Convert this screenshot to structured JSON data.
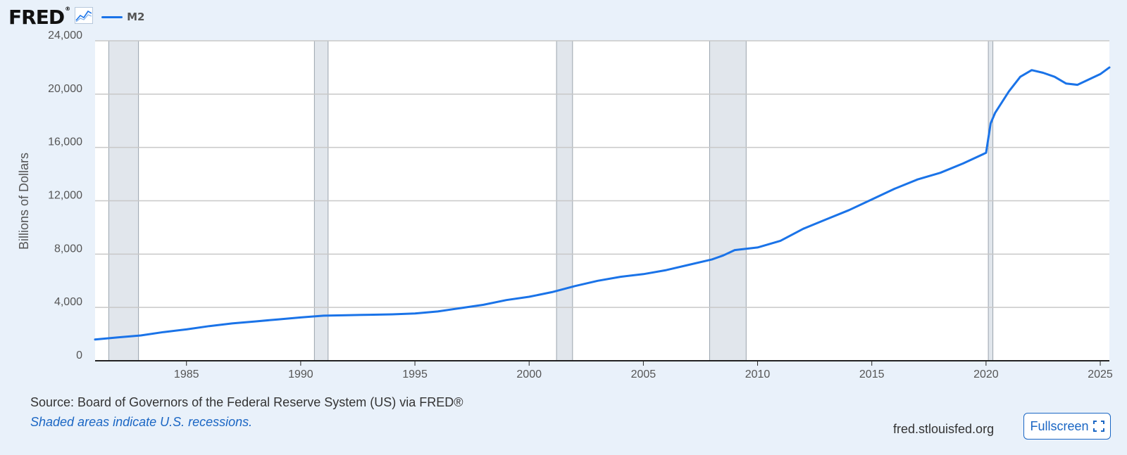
{
  "header": {
    "logo_text": "FRED",
    "logo_mark": "®",
    "legend_label": "M2"
  },
  "icons": {
    "logo_graph": "line-graph-icon",
    "fullscreen": "expand-icon"
  },
  "colors": {
    "series": "#1a73e8",
    "recession": "#e1e6ec",
    "background": "#e9f1fa",
    "link": "#1a66c4"
  },
  "footer": {
    "source": "Source: Board of Governors of the Federal Reserve System (US) via FRED®",
    "recession_note": "Shaded areas indicate U.S. recessions.",
    "site_url": "fred.stlouisfed.org",
    "fullscreen_label": "Fullscreen"
  },
  "chart_data": {
    "type": "line",
    "title": "",
    "xlabel": "",
    "ylabel": "Billions of Dollars",
    "xlim": [
      1981.0,
      2025.4
    ],
    "ylim": [
      0,
      24000
    ],
    "yticks": [
      0,
      4000,
      8000,
      12000,
      16000,
      20000,
      24000
    ],
    "ytick_labels": [
      "0",
      "4,000",
      "8,000",
      "12,000",
      "16,000",
      "20,000",
      "24,000"
    ],
    "xticks": [
      1985,
      1990,
      1995,
      2000,
      2005,
      2010,
      2015,
      2020,
      2025
    ],
    "xtick_labels": [
      "1985",
      "1990",
      "1995",
      "2000",
      "2005",
      "2010",
      "2015",
      "2020",
      "2025"
    ],
    "grid": true,
    "legend_position": "top-left",
    "recessions": [
      [
        1981.6,
        1982.9
      ],
      [
        1990.6,
        1991.2
      ],
      [
        2001.2,
        2001.9
      ],
      [
        2007.9,
        2009.5
      ],
      [
        2020.1,
        2020.3
      ]
    ],
    "series": [
      {
        "name": "M2",
        "x": [
          1981.0,
          1982.0,
          1983.0,
          1984.0,
          1985.0,
          1986.0,
          1987.0,
          1988.0,
          1989.0,
          1990.0,
          1991.0,
          1992.0,
          1993.0,
          1994.0,
          1995.0,
          1996.0,
          1997.0,
          1998.0,
          1999.0,
          2000.0,
          2001.0,
          2002.0,
          2003.0,
          2004.0,
          2005.0,
          2006.0,
          2007.0,
          2008.0,
          2008.5,
          2009.0,
          2010.0,
          2011.0,
          2012.0,
          2013.0,
          2014.0,
          2015.0,
          2016.0,
          2017.0,
          2018.0,
          2019.0,
          2020.0,
          2020.2,
          2020.4,
          2021.0,
          2021.5,
          2022.0,
          2022.5,
          2023.0,
          2023.5,
          2024.0,
          2024.5,
          2025.0,
          2025.4
        ],
        "values": [
          1600,
          1750,
          1900,
          2150,
          2350,
          2600,
          2800,
          2950,
          3100,
          3250,
          3380,
          3420,
          3450,
          3480,
          3550,
          3700,
          3950,
          4200,
          4550,
          4800,
          5150,
          5600,
          6000,
          6300,
          6500,
          6800,
          7200,
          7600,
          7900,
          8300,
          8500,
          9000,
          9900,
          10600,
          11300,
          12100,
          12900,
          13600,
          14100,
          14800,
          15600,
          17800,
          18600,
          20200,
          21300,
          21800,
          21600,
          21300,
          20800,
          20700,
          21100,
          21500,
          22000
        ]
      }
    ]
  }
}
